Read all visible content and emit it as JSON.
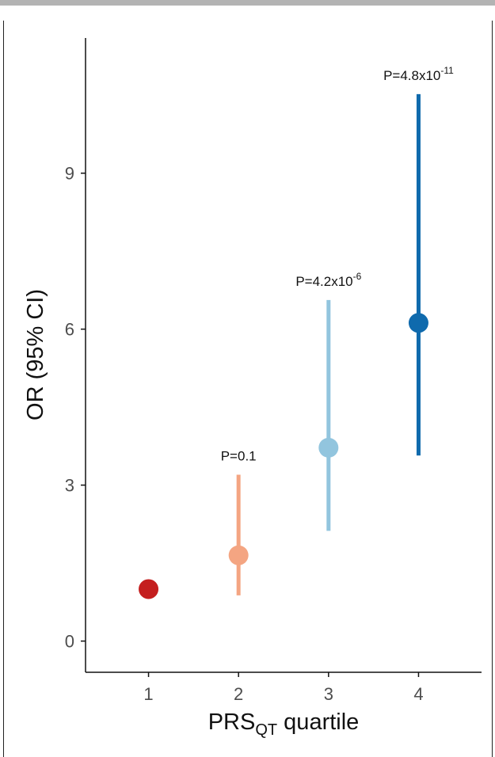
{
  "chart_data": {
    "type": "scatter",
    "xlabel": {
      "main": "PRS",
      "sub": "QT",
      "rest": " quartile"
    },
    "ylabel": "OR (95% CI)",
    "categories": [
      "1",
      "2",
      "3",
      "4"
    ],
    "x": [
      1,
      2,
      3,
      4
    ],
    "or": [
      1.0,
      1.65,
      3.72,
      6.12
    ],
    "ci_low": [
      1.0,
      0.88,
      2.12,
      3.57
    ],
    "ci_high": [
      1.0,
      3.2,
      6.56,
      10.52
    ],
    "colors": [
      "#c41e1e",
      "#f4a582",
      "#92c5de",
      "#0f6aad"
    ],
    "annotations": [
      {
        "x": 2,
        "base": "P=0.1",
        "exp": ""
      },
      {
        "x": 3,
        "base": "P=4.2x10",
        "exp": "-6"
      },
      {
        "x": 4,
        "base": "P=4.8x10",
        "exp": "-11"
      }
    ],
    "yticks": [
      0,
      3,
      6,
      9
    ],
    "ylim": [
      -0.6,
      11.6
    ],
    "xlim": [
      0.3,
      4.7
    ],
    "grid": false,
    "legend": "none"
  }
}
